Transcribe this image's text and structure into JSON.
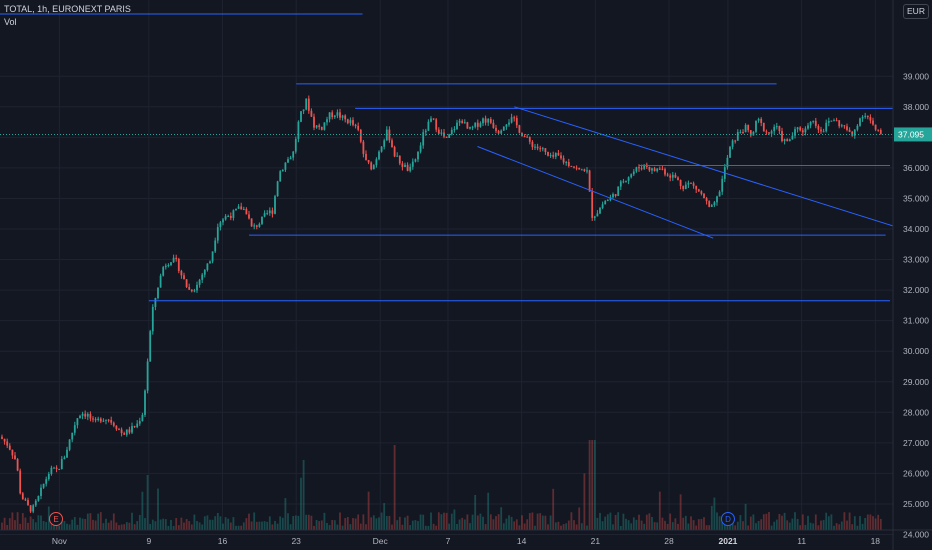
{
  "header": {
    "title": "TOTAL, 1h, EURONEXT PARIS",
    "volume_label": "Vol",
    "currency": "EUR"
  },
  "colors": {
    "background": "#131722",
    "grid": "#1f2330",
    "up": "#26a69a",
    "down": "#ef5350",
    "trendline": "#2962ff",
    "last_price": "#26a69a"
  },
  "chart_data": {
    "type": "candlestick",
    "symbol": "TOTAL",
    "interval": "1h",
    "exchange": "EURONEXT PARIS",
    "currency": "EUR",
    "y_ticks": [
      "24.000",
      "25.000",
      "26.000",
      "27.000",
      "28.000",
      "29.000",
      "30.000",
      "31.000",
      "32.000",
      "33.000",
      "34.000",
      "35.000",
      "36.000",
      "37.000",
      "38.000",
      "39.000"
    ],
    "ylim": [
      23.6,
      39.5
    ],
    "x_ticks": [
      {
        "label": "Nov",
        "x": 0.23
      },
      {
        "label": "9",
        "x": 6.3
      },
      {
        "label": "16",
        "x": 11.3
      },
      {
        "label": "23",
        "x": 16.3
      },
      {
        "label": "Dec",
        "x": 22.0
      },
      {
        "label": "7",
        "x": 26.6
      },
      {
        "label": "14",
        "x": 31.6
      },
      {
        "label": "21",
        "x": 36.6
      },
      {
        "label": "28",
        "x": 41.6
      },
      {
        "label": "2021",
        "x": 45.6,
        "bold": true
      },
      {
        "label": "11",
        "x": 50.6
      },
      {
        "label": "18",
        "x": 55.6
      }
    ],
    "xlim": [
      -3.8,
      56.8
    ],
    "last_price": "37.095",
    "last_price_value": 37.095,
    "price_path": [
      [
        -3.8,
        27.2
      ],
      [
        -3.2,
        26.9
      ],
      [
        -2.7,
        26.4
      ],
      [
        -2.4,
        25.3
      ],
      [
        -1.9,
        24.9
      ],
      [
        -1.6,
        24.8
      ],
      [
        -1.2,
        25.2
      ],
      [
        -0.8,
        25.7
      ],
      [
        -0.4,
        26.1
      ],
      [
        0.1,
        26.1
      ],
      [
        0.6,
        26.6
      ],
      [
        1.0,
        27.2
      ],
      [
        1.4,
        27.8
      ],
      [
        1.7,
        28.0
      ],
      [
        2.2,
        27.9
      ],
      [
        2.6,
        27.6
      ],
      [
        3.0,
        27.8
      ],
      [
        3.5,
        27.8
      ],
      [
        4.0,
        27.6
      ],
      [
        4.5,
        27.3
      ],
      [
        5.0,
        27.4
      ],
      [
        5.5,
        27.6
      ],
      [
        5.9,
        28.0
      ],
      [
        6.2,
        29.6
      ],
      [
        6.5,
        31.2
      ],
      [
        6.9,
        32.1
      ],
      [
        7.3,
        32.8
      ],
      [
        7.8,
        33.0
      ],
      [
        8.2,
        32.9
      ],
      [
        8.6,
        32.4
      ],
      [
        9.0,
        32.0
      ],
      [
        9.5,
        32.1
      ],
      [
        10.0,
        32.6
      ],
      [
        10.5,
        33.0
      ],
      [
        11.0,
        34.2
      ],
      [
        11.5,
        34.4
      ],
      [
        12.0,
        34.5
      ],
      [
        12.5,
        34.7
      ],
      [
        12.9,
        34.6
      ],
      [
        13.3,
        34.0
      ],
      [
        13.8,
        34.2
      ],
      [
        14.3,
        34.5
      ],
      [
        14.7,
        34.6
      ],
      [
        15.1,
        35.8
      ],
      [
        15.6,
        36.2
      ],
      [
        16.1,
        36.5
      ],
      [
        16.5,
        37.6
      ],
      [
        17.0,
        38.2
      ],
      [
        17.5,
        37.4
      ],
      [
        18.0,
        37.3
      ],
      [
        18.5,
        37.7
      ],
      [
        19.0,
        37.8
      ],
      [
        19.5,
        37.6
      ],
      [
        20.0,
        37.5
      ],
      [
        20.5,
        37.2
      ],
      [
        21.0,
        36.2
      ],
      [
        21.5,
        36.0
      ],
      [
        22.0,
        36.7
      ],
      [
        22.5,
        37.2
      ],
      [
        23.0,
        36.4
      ],
      [
        23.5,
        36.1
      ],
      [
        24.0,
        35.9
      ],
      [
        24.5,
        36.4
      ],
      [
        25.0,
        37.2
      ],
      [
        25.5,
        37.6
      ],
      [
        26.0,
        37.2
      ],
      [
        26.5,
        36.9
      ],
      [
        27.0,
        37.3
      ],
      [
        27.5,
        37.6
      ],
      [
        28.0,
        37.2
      ],
      [
        28.5,
        37.4
      ],
      [
        29.0,
        37.6
      ],
      [
        29.5,
        37.5
      ],
      [
        30.0,
        37.2
      ],
      [
        30.5,
        37.5
      ],
      [
        31.0,
        37.6
      ],
      [
        31.5,
        37.2
      ],
      [
        32.0,
        36.9
      ],
      [
        32.5,
        36.7
      ],
      [
        33.0,
        36.6
      ],
      [
        33.5,
        36.3
      ],
      [
        34.0,
        36.4
      ],
      [
        34.5,
        36.2
      ],
      [
        35.0,
        36.1
      ],
      [
        35.5,
        35.9
      ],
      [
        36.0,
        36.0
      ],
      [
        36.4,
        34.4
      ],
      [
        36.8,
        34.6
      ],
      [
        37.2,
        34.9
      ],
      [
        37.6,
        35.0
      ],
      [
        38.0,
        35.2
      ],
      [
        38.5,
        35.6
      ],
      [
        39.0,
        35.8
      ],
      [
        39.5,
        36.0
      ],
      [
        40.0,
        36.1
      ],
      [
        40.5,
        35.9
      ],
      [
        41.0,
        36.0
      ],
      [
        41.5,
        35.8
      ],
      [
        42.0,
        35.7
      ],
      [
        42.5,
        35.4
      ],
      [
        43.0,
        35.5
      ],
      [
        43.5,
        35.3
      ],
      [
        44.0,
        35.0
      ],
      [
        44.4,
        34.6
      ],
      [
        44.8,
        34.9
      ],
      [
        45.1,
        35.4
      ],
      [
        45.4,
        36.0
      ],
      [
        45.7,
        36.6
      ],
      [
        46.0,
        36.9
      ],
      [
        46.4,
        37.2
      ],
      [
        46.8,
        37.3
      ],
      [
        47.2,
        37.0
      ],
      [
        47.6,
        37.6
      ],
      [
        48.0,
        37.3
      ],
      [
        48.4,
        37.1
      ],
      [
        48.8,
        37.4
      ],
      [
        49.2,
        37.0
      ],
      [
        49.6,
        36.8
      ],
      [
        50.0,
        37.1
      ],
      [
        50.4,
        37.3
      ],
      [
        50.8,
        37.2
      ],
      [
        51.2,
        37.6
      ],
      [
        51.6,
        37.4
      ],
      [
        52.0,
        37.2
      ],
      [
        52.4,
        37.5
      ],
      [
        52.8,
        37.6
      ],
      [
        53.2,
        37.4
      ],
      [
        53.6,
        37.3
      ],
      [
        54.0,
        37.0
      ],
      [
        54.4,
        37.5
      ],
      [
        54.8,
        37.8
      ],
      [
        55.2,
        37.6
      ],
      [
        55.6,
        37.2
      ],
      [
        56.0,
        37.095
      ]
    ],
    "trendlines": [
      {
        "name": "upper-channel",
        "x1": 31.1,
        "y1": 38.0,
        "x2": 56.8,
        "y2": 34.1
      },
      {
        "name": "lower-channel",
        "x1": 28.6,
        "y1": 36.7,
        "x2": 44.6,
        "y2": 33.7
      }
    ],
    "horizontal_levels": [
      {
        "name": "level-38-7",
        "x1": 16.3,
        "x2": 48.9,
        "y": 38.75
      },
      {
        "name": "level-37-9",
        "x1": 20.3,
        "x2": 56.8,
        "y": 37.95
      },
      {
        "name": "level-36-1",
        "x1": 39.6,
        "x2": 56.6,
        "y": 36.08
      },
      {
        "name": "level-33-8",
        "x1": 13.1,
        "x2": 56.3,
        "y": 33.8
      },
      {
        "name": "level-31-6",
        "x1": 6.3,
        "x2": 56.6,
        "y": 31.65
      },
      {
        "name": "level-top",
        "x1": -3.8,
        "x2": 20.8,
        "y": 41.2
      }
    ],
    "event_markers": [
      {
        "label": "E",
        "x": 0.0,
        "type": "earnings"
      },
      {
        "label": "D",
        "x": 45.6,
        "type": "dividend"
      }
    ]
  }
}
